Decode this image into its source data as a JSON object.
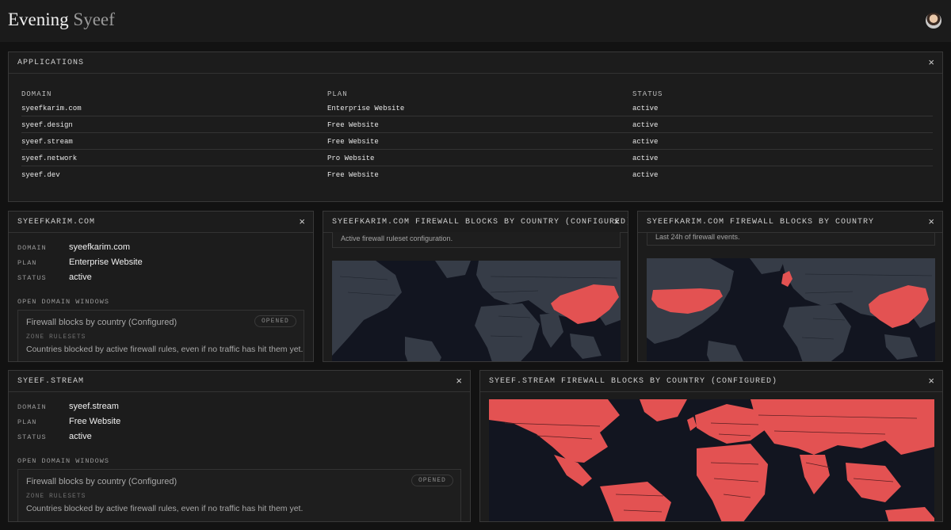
{
  "greeting": {
    "word": "Evening",
    "name": "Syeef"
  },
  "applications": {
    "title": "APPLICATIONS",
    "close": "×",
    "columns": [
      "DOMAIN",
      "PLAN",
      "STATUS"
    ],
    "rows": [
      {
        "domain": "syeefkarim.com",
        "plan": "Enterprise Website",
        "status": "active"
      },
      {
        "domain": "syeef.design",
        "plan": "Free Website",
        "status": "active"
      },
      {
        "domain": "syeef.stream",
        "plan": "Free Website",
        "status": "active"
      },
      {
        "domain": "syeef.network",
        "plan": "Pro Website",
        "status": "active"
      },
      {
        "domain": "syeef.dev",
        "plan": "Free Website",
        "status": "active"
      }
    ]
  },
  "detail1": {
    "title": "SYEEFKARIM.COM",
    "close": "×",
    "labels": {
      "domain": "DOMAIN",
      "plan": "PLAN",
      "status": "STATUS"
    },
    "domain": "syeefkarim.com",
    "plan": "Enterprise Website",
    "status": "active",
    "section": "OPEN DOMAIN WINDOWS",
    "card": {
      "title": "Firewall blocks by country (Configured)",
      "badge": "OPENED",
      "sub": "ZONE RULESETS",
      "desc": "Countries blocked by active firewall rules, even if no traffic has hit them yet."
    }
  },
  "map1": {
    "title": "SYEEFKARIM.COM FIREWALL BLOCKS BY COUNTRY (CONFIGURED)",
    "close": "×",
    "note": "Active firewall ruleset configuration."
  },
  "map2": {
    "title": "SYEEFKARIM.COM FIREWALL BLOCKS BY COUNTRY",
    "close": "×",
    "note": "Last 24h of firewall events."
  },
  "detail2": {
    "title": "SYEEF.STREAM",
    "close": "×",
    "labels": {
      "domain": "DOMAIN",
      "plan": "PLAN",
      "status": "STATUS"
    },
    "domain": "syeef.stream",
    "plan": "Free Website",
    "status": "active",
    "section": "OPEN DOMAIN WINDOWS",
    "card": {
      "title": "Firewall blocks by country (Configured)",
      "badge": "OPENED",
      "sub": "ZONE RULESETS",
      "desc": "Countries blocked by active firewall rules, even if no traffic has hit them yet."
    }
  },
  "map3": {
    "title": "SYEEF.STREAM FIREWALL BLOCKS BY COUNTRY (CONFIGURED)",
    "close": "×"
  },
  "colors": {
    "background": "#121212",
    "panel": "#1c1c1c",
    "ocean": "#121520",
    "land": "#363c47",
    "blocked": "#e35252"
  }
}
